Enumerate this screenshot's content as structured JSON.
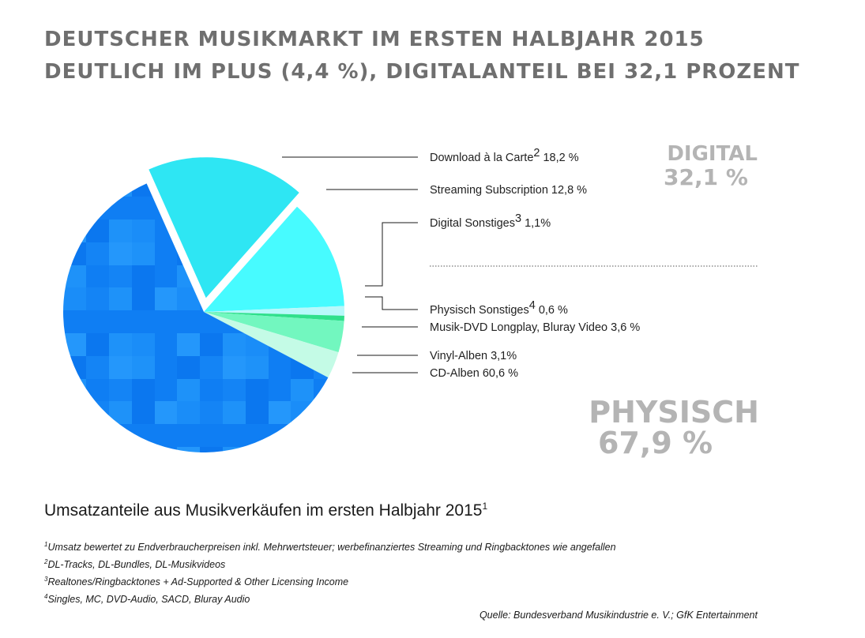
{
  "title": {
    "line1": "DEUTSCHER MUSIKMARKT IM ERSTEN HALBJAHR 2015",
    "line2": "DEUTLICH IM PLUS (4,4 %), DIGITALANTEIL BEI 32,1 PROZENT"
  },
  "subtitle": {
    "text": "Umsatzanteile aus Musikverkäufen im ersten Halbjahr 2015",
    "sup": "1"
  },
  "chart_data": {
    "type": "pie",
    "groups": [
      {
        "label": "DIGITAL",
        "value_label": "32,1 %",
        "value": 32.1
      },
      {
        "label": "PHYSISCH",
        "value_label": "67,9 %",
        "value": 67.9
      }
    ],
    "slices": [
      {
        "name": "Download à la Carte",
        "sup": "2",
        "value_label": "18,2 %",
        "value": 18.2,
        "group": "digital",
        "color": "#2ee6f3"
      },
      {
        "name": "Streaming Subscription",
        "sup": "",
        "value_label": "12,8 %",
        "value": 12.8,
        "group": "digital",
        "color": "#47fbff"
      },
      {
        "name": "Digital Sonstiges",
        "sup": "3",
        "value_label": "1,1%",
        "value": 1.1,
        "group": "digital",
        "color": "#b8f9fb"
      },
      {
        "name": "Physisch Sonstiges",
        "sup": "4",
        "value_label": "0,6 %",
        "value": 0.6,
        "group": "physisch",
        "color": "#2fe08c"
      },
      {
        "name": "Musik-DVD Longplay, Bluray Video",
        "sup": "",
        "value_label": "3,6 %",
        "value": 3.6,
        "group": "physisch",
        "color": "#72f7bf"
      },
      {
        "name": "Vinyl-Alben",
        "sup": "",
        "value_label": "3,1%",
        "value": 3.1,
        "group": "physisch",
        "color": "#c4fbe6"
      },
      {
        "name": "CD-Alben",
        "sup": "",
        "value_label": "60,6 %",
        "value": 60.6,
        "group": "physisch",
        "color": "#1387f6"
      }
    ]
  },
  "footnotes": [
    {
      "num": "1",
      "text": "Umsatz bewertet zu Endverbraucherpreisen inkl. Mehrwertsteuer; werbefinanziertes Streaming und Ringbacktones wie angefallen"
    },
    {
      "num": "2",
      "text": "DL-Tracks, DL-Bundles, DL-Musikvideos"
    },
    {
      "num": "3",
      "text": "Realtones/Ringbacktones + Ad-Supported & Other Licensing Income"
    },
    {
      "num": "4",
      "text": "Singles, MC, DVD-Audio, SACD, Bluray Audio"
    }
  ],
  "source": "Quelle: Bundesverband Musikindustrie e. V.; GfK Entertainment"
}
